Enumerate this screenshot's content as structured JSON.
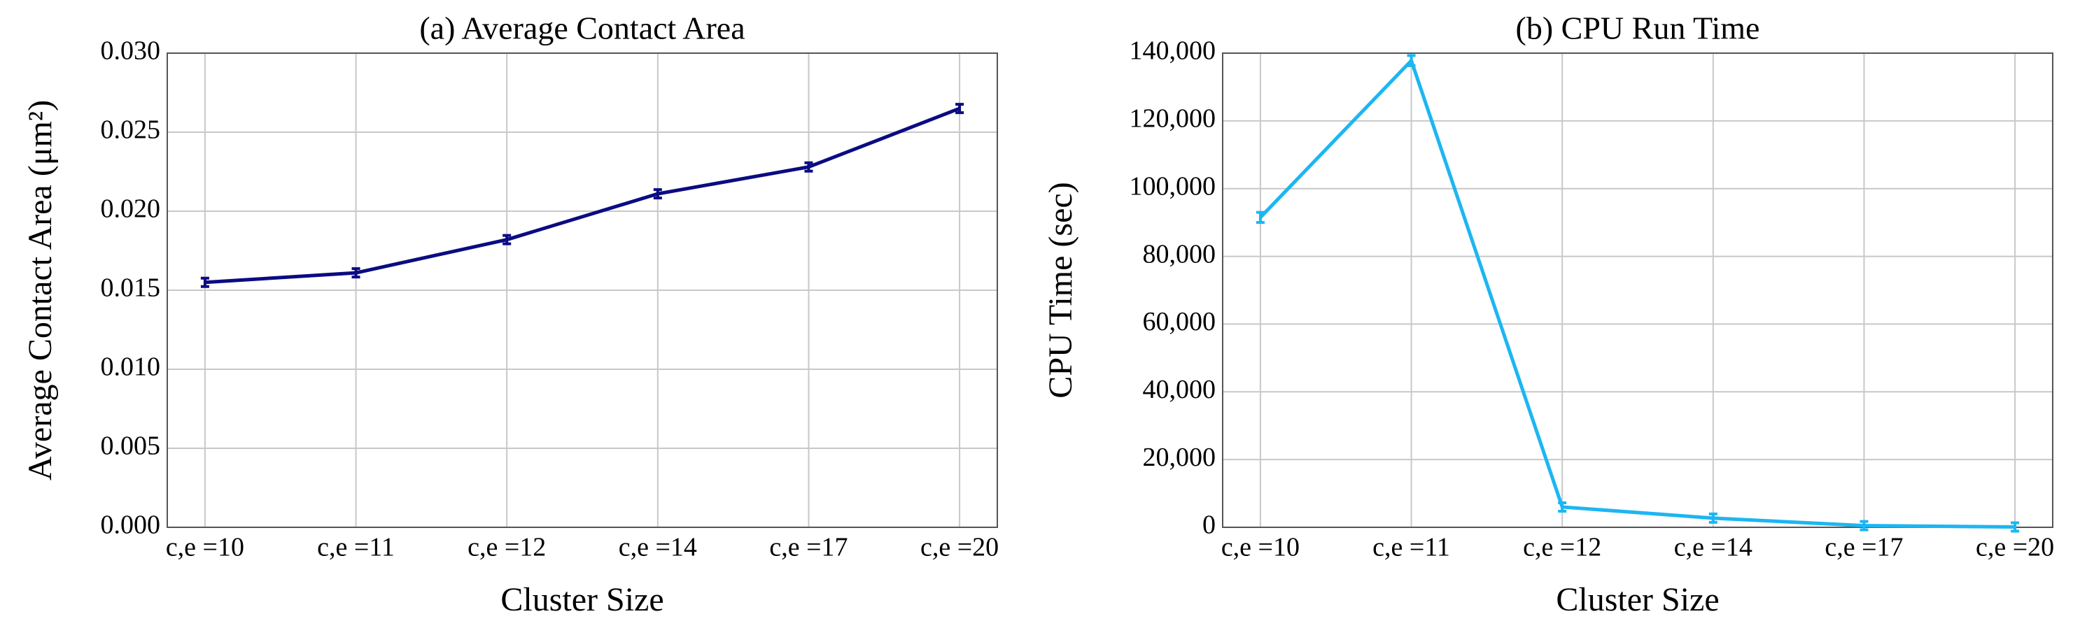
{
  "chart_data": [
    {
      "type": "line",
      "title": "(a) Average Contact Area",
      "xlabel": "Cluster Size",
      "ylabel": "Average Contact Area (μm²)",
      "categories": [
        "c,e =10",
        "c,e =11",
        "c,e =12",
        "c,e =14",
        "c,e =17",
        "c,e =20"
      ],
      "series": [
        {
          "color": "#0b0b82",
          "values": [
            0.0155,
            0.0161,
            0.0182,
            0.0211,
            0.0228,
            0.0265
          ],
          "errors": [
            0.0002,
            0.0002,
            0.0002,
            0.0002,
            0.0002,
            0.0002
          ]
        }
      ],
      "ylim": [
        0,
        0.03
      ],
      "yticks": [
        {
          "value": 0,
          "label": "0.000"
        },
        {
          "value": 0.005,
          "label": "0.005"
        },
        {
          "value": 0.01,
          "label": "0.010"
        },
        {
          "value": 0.015,
          "label": "0.015"
        },
        {
          "value": 0.02,
          "label": "0.020"
        },
        {
          "value": 0.025,
          "label": "0.025"
        },
        {
          "value": 0.03,
          "label": "0.030"
        }
      ],
      "grid": true
    },
    {
      "type": "line",
      "title": "(b) CPU Run Time",
      "xlabel": "Cluster Size",
      "ylabel": "CPU Time (sec)",
      "categories": [
        "c,e =10",
        "c,e =11",
        "c,e =12",
        "c,e =14",
        "c,e =17",
        "c,e =20"
      ],
      "series": [
        {
          "color": "#1cb6f2",
          "values": [
            91500,
            137800,
            6000,
            2700,
            500,
            100
          ],
          "errors": [
            1500,
            1500,
            1000,
            1000,
            500,
            500
          ]
        }
      ],
      "ylim": [
        0,
        140000
      ],
      "yticks": [
        0,
        {
          "value": 20000,
          "label": "20,000"
        },
        {
          "value": 40000,
          "label": "40,000"
        },
        {
          "value": 60000,
          "label": "60,000"
        },
        {
          "value": 80000,
          "label": "80,000"
        },
        {
          "value": 100000,
          "label": "100,000"
        },
        {
          "value": 120000,
          "label": "120,000"
        },
        {
          "value": 140000,
          "label": "140,000"
        }
      ],
      "grid": true
    }
  ]
}
